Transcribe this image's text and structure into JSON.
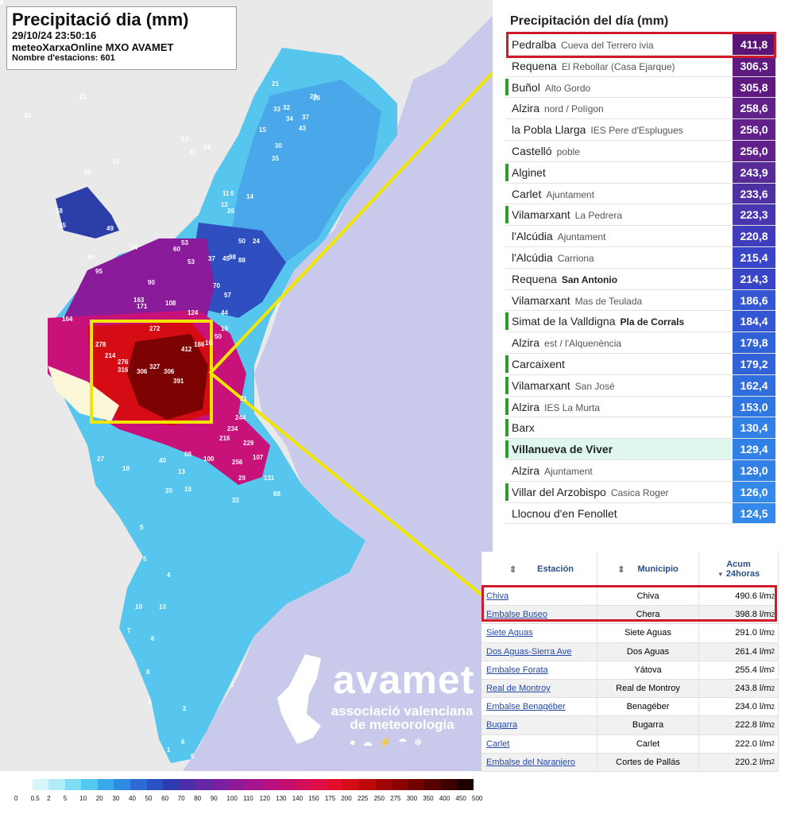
{
  "map": {
    "title": "Precipitació dia (mm)",
    "datetime": "29/10/24 23:50:16",
    "network": "meteoXarxaOnline MXO AVAMET",
    "stations_count": "Nombre d'estacions: 601",
    "labels": [
      "164",
      "278",
      "272",
      "412",
      "186",
      "16",
      "214",
      "276",
      "316",
      "306",
      "327",
      "306",
      "391",
      "244",
      "234",
      "216",
      "229",
      "256",
      "107",
      "100",
      "131",
      "88",
      "95",
      "74",
      "69",
      "90",
      "163",
      "171",
      "108",
      "124",
      "53",
      "60",
      "53",
      "37",
      "45",
      "98",
      "88",
      "70",
      "57",
      "44",
      "50",
      "19",
      "21",
      "27",
      "18",
      "40",
      "68",
      "20",
      "13",
      "32",
      "29",
      "11",
      "45",
      "58",
      "49",
      "21",
      "55",
      "41",
      "13",
      "22",
      "24",
      "35",
      "21",
      "33",
      "43",
      "34",
      "37",
      "26",
      "30",
      "32",
      "50",
      "24",
      "35",
      "15",
      "20",
      "26",
      "14",
      "9",
      "12",
      "15",
      "5",
      "4",
      "6",
      "8",
      "2",
      "1",
      "1",
      "5",
      "10",
      "10",
      "7",
      "6",
      "9",
      "3",
      "4",
      "3"
    ],
    "legend_labels": [
      "0",
      "0.5",
      "2",
      "5",
      "10",
      "20",
      "30",
      "40",
      "50",
      "60",
      "70",
      "80",
      "90",
      "100",
      "110",
      "120",
      "130",
      "140",
      "150",
      "175",
      "200",
      "225",
      "250",
      "275",
      "300",
      "350",
      "400",
      "450",
      "500"
    ],
    "legend_colors": [
      "#ffffff",
      "#d7f6fb",
      "#b2ecf7",
      "#7fdcf2",
      "#54c8ee",
      "#3aa9eb",
      "#2f8ae4",
      "#2c6bd6",
      "#2b52c4",
      "#2d3ab0",
      "#4a2fa8",
      "#6428a4",
      "#7a1fa0",
      "#8f1a98",
      "#a3158e",
      "#b31280",
      "#c20f70",
      "#cf0e5c",
      "#dc0e45",
      "#e30e2c",
      "#d50d14",
      "#bc0a0a",
      "#a10606",
      "#8a0404",
      "#700202",
      "#560101",
      "#3d0000",
      "#1f0000"
    ],
    "logo_big": "avamet",
    "logo_small": "associació valenciana de meteorologia"
  },
  "panel1": {
    "header": "Precipitación del día (mm)",
    "rows": [
      {
        "name": "Pedralba",
        "sub": "Cueva del Terrero ivia",
        "value": "411,8",
        "color": "#5a1475",
        "bar": ""
      },
      {
        "name": "Requena",
        "sub": "El Rebollar (Casa Ejarque)",
        "value": "306,3",
        "color": "#5e1a7f",
        "bar": ""
      },
      {
        "name": "Buñol",
        "sub": "Alto Gordo",
        "value": "305,8",
        "color": "#5e1a7f",
        "bar": "#2aa02a"
      },
      {
        "name": "Alzira",
        "sub": "nord / Polígon",
        "value": "258,6",
        "color": "#62208a",
        "bar": ""
      },
      {
        "name": "la Pobla Llarga",
        "sub": "IES Pere d'Esplugues",
        "value": "256,0",
        "color": "#62208a",
        "bar": ""
      },
      {
        "name": "Castelló",
        "sub": "poble",
        "value": "256,0",
        "color": "#62208a",
        "bar": ""
      },
      {
        "name": "Alginet",
        "sub": "",
        "value": "243,9",
        "color": "#572a96",
        "bar": "#2aa02a"
      },
      {
        "name": "Carlet",
        "sub": "Ajuntament",
        "value": "233,6",
        "color": "#4e30a0",
        "bar": ""
      },
      {
        "name": "Vilamarxant",
        "sub": "La Pedrera",
        "value": "223,3",
        "color": "#4736b0",
        "bar": "#2aa02a"
      },
      {
        "name": "l'Alcúdia",
        "sub": "Ajuntament",
        "value": "220,8",
        "color": "#403cbb",
        "bar": ""
      },
      {
        "name": "l'Alcúdia",
        "sub": "Carriona",
        "value": "215,4",
        "color": "#3a44c6",
        "bar": ""
      },
      {
        "name": "Requena",
        "sub": "San Antonio",
        "value": "214,3",
        "color": "#3a44c6",
        "bar": "",
        "subbold": true
      },
      {
        "name": "Vilamarxant",
        "sub": "Mas de Teulada",
        "value": "186,6",
        "color": "#3556d2",
        "bar": ""
      },
      {
        "name": "Simat de la Valldigna",
        "sub": "Pla de Corrals",
        "value": "184,4",
        "color": "#3556d2",
        "bar": "#2aa02a",
        "subbold": true
      },
      {
        "name": "Alzira",
        "sub": "est / l'Alquenència",
        "value": "179,8",
        "color": "#3162d8",
        "bar": ""
      },
      {
        "name": "Carcaixent",
        "sub": "",
        "value": "179,2",
        "color": "#3162d8",
        "bar": "#2aa02a"
      },
      {
        "name": "Vilamarxant",
        "sub": "San José",
        "value": "162,4",
        "color": "#306ede",
        "bar": "#2aa02a"
      },
      {
        "name": "Alzira",
        "sub": "IES La Murta",
        "value": "153,0",
        "color": "#3076e2",
        "bar": "#2aa02a"
      },
      {
        "name": "Barx",
        "sub": "",
        "value": "130,4",
        "color": "#3180e6",
        "bar": "#2aa02a"
      },
      {
        "name": "Villanueva de Viver",
        "sub": "",
        "value": "129,4",
        "color": "#3180e6",
        "bar": "#2aa02a",
        "highlight": true
      },
      {
        "name": "Alzira",
        "sub": "Ajuntament",
        "value": "129,0",
        "color": "#3180e6",
        "bar": ""
      },
      {
        "name": "Villar del Arzobispo",
        "sub": "Casica Roger",
        "value": "126,0",
        "color": "#3388ea",
        "bar": "#2aa02a"
      },
      {
        "name": "Llocnou d'en Fenollet",
        "sub": "",
        "value": "124,5",
        "color": "#3388ea",
        "bar": ""
      }
    ]
  },
  "panel2": {
    "headers": {
      "station": "Estación",
      "municipality": "Municipio",
      "accum": "Acum",
      "accum2": "24horas"
    },
    "unit": "l/m",
    "unit_sup": "2",
    "rows": [
      {
        "station": "Chiva",
        "municipality": "Chiva",
        "value": "490.6"
      },
      {
        "station": "Embalse Buseo",
        "municipality": "Chera",
        "value": "398.8"
      },
      {
        "station": "Siete Aguas",
        "municipality": "Siete Aguas",
        "value": "291.0"
      },
      {
        "station": "Dos Aguas-Sierra Ave",
        "municipality": "Dos Aguas",
        "value": "261.4"
      },
      {
        "station": "Embalse Forata",
        "municipality": "Yátova",
        "value": "255.4"
      },
      {
        "station": "Real de Montroy",
        "municipality": "Real de Montroy",
        "value": "243.8"
      },
      {
        "station": "Embalse Benagéber",
        "municipality": "Benagéber",
        "value": "234.0"
      },
      {
        "station": "Bugarra",
        "municipality": "Bugarra",
        "value": "222.8"
      },
      {
        "station": "Carlet",
        "municipality": "Carlet",
        "value": "222.0"
      },
      {
        "station": "Embalse del Naranjero",
        "municipality": "Cortes de Pallás",
        "value": "220.2"
      }
    ]
  }
}
